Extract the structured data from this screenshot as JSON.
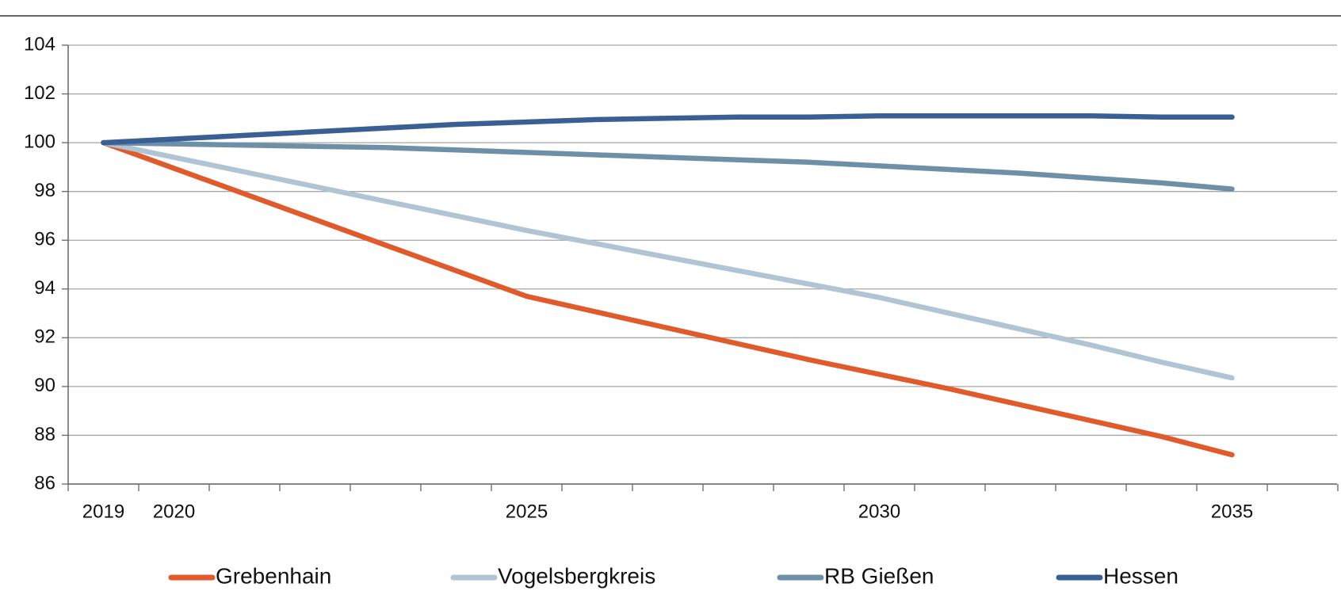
{
  "chart_data": {
    "type": "line",
    "categories": [
      2019,
      2020,
      null,
      null,
      null,
      null,
      2025,
      null,
      null,
      null,
      null,
      2030,
      null,
      null,
      null,
      null,
      2035
    ],
    "series": [
      {
        "name": "Grebenhain",
        "color": "#e05a2b",
        "values": [
          100,
          98.95,
          97.9,
          96.85,
          95.8,
          94.75,
          93.7,
          93.05,
          92.4,
          91.75,
          91.1,
          90.5,
          89.9,
          89.25,
          88.6,
          87.95,
          87.2
        ]
      },
      {
        "name": "Vogelsbergkreis",
        "color": "#b0c4d4",
        "values": [
          100,
          99.4,
          98.8,
          98.2,
          97.6,
          97.0,
          96.4,
          95.85,
          95.3,
          94.75,
          94.2,
          93.65,
          93.0,
          92.35,
          91.7,
          91.0,
          90.35
        ]
      },
      {
        "name": "RB Gießen",
        "color": "#6e8fa8",
        "values": [
          100,
          99.95,
          99.9,
          99.85,
          99.8,
          99.7,
          99.6,
          99.5,
          99.4,
          99.3,
          99.2,
          99.05,
          98.9,
          98.75,
          98.55,
          98.35,
          98.1
        ]
      },
      {
        "name": "Hessen",
        "color": "#3a5f94",
        "values": [
          100,
          100.15,
          100.3,
          100.45,
          100.6,
          100.75,
          100.85,
          100.95,
          101.0,
          101.05,
          101.05,
          101.1,
          101.1,
          101.1,
          101.1,
          101.05,
          101.05
        ]
      }
    ],
    "ylim": [
      86,
      104
    ],
    "yticks": [
      86,
      88,
      90,
      92,
      94,
      96,
      98,
      100,
      102,
      104
    ],
    "grid": true
  }
}
